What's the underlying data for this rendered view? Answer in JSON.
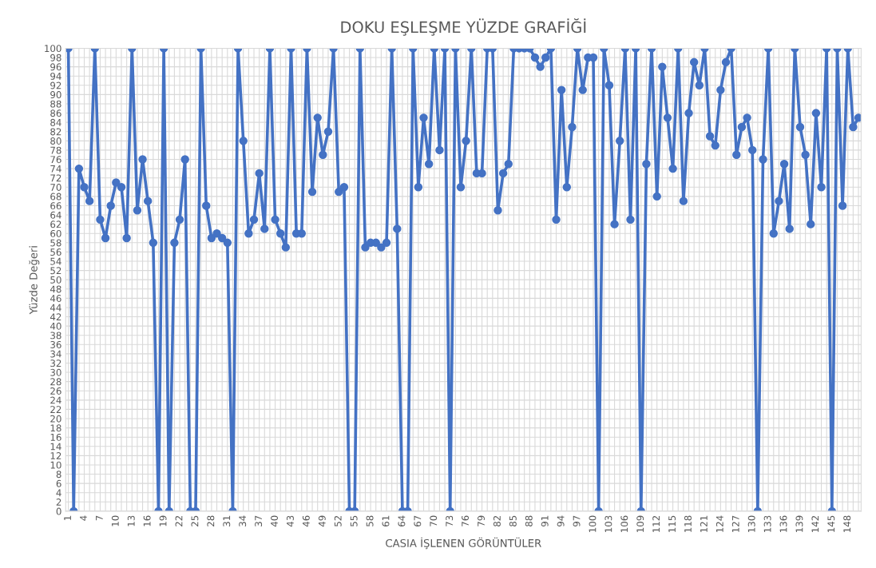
{
  "chart_data": {
    "type": "line",
    "title": "DOKU EŞLEŞME YÜZDE GRAFİĞİ",
    "xlabel": "CASIA İŞLENEN GÖRÜNTÜLER",
    "ylabel": "Yüzde Değeri",
    "categories": [
      "1",
      null,
      null,
      "4",
      null,
      null,
      "7",
      null,
      null,
      "10",
      null,
      null,
      "13",
      null,
      null,
      "16",
      null,
      null,
      "19",
      null,
      null,
      "22",
      null,
      null,
      "25",
      null,
      null,
      "28",
      null,
      null,
      "31",
      null,
      null,
      "34",
      null,
      null,
      "37",
      null,
      null,
      "40",
      null,
      null,
      "43",
      null,
      null,
      "46",
      null,
      null,
      "49",
      null,
      null,
      "52",
      null,
      null,
      "55",
      null,
      null,
      "58",
      null,
      null,
      "61",
      null,
      null,
      "64",
      null,
      null,
      "67",
      null,
      null,
      "70",
      null,
      null,
      "73",
      null,
      null,
      "76",
      null,
      null,
      "79",
      null,
      null,
      "82",
      null,
      null,
      "85",
      null,
      null,
      "88",
      null,
      null,
      "91",
      null,
      null,
      "94",
      null,
      null,
      "97",
      null,
      null,
      "100",
      null,
      null,
      "103",
      null,
      null,
      "106",
      null,
      null,
      "109",
      null,
      null,
      "112",
      null,
      null,
      "115",
      null,
      null,
      "118",
      null,
      null,
      "121",
      null,
      null,
      "124",
      null,
      null,
      "127",
      null,
      null,
      "130",
      null,
      null,
      "133",
      null,
      null,
      "136",
      null,
      null,
      "139",
      null,
      null,
      "142",
      null,
      null,
      "145",
      null,
      null,
      "148",
      null,
      null
    ],
    "series": [
      {
        "color": "#4472c4",
        "values": [
          100,
          0,
          74,
          70,
          67,
          100,
          63,
          59,
          66,
          71,
          70,
          59,
          100,
          65,
          76,
          67,
          58,
          0,
          100,
          0,
          58,
          63,
          76,
          0,
          0,
          100,
          66,
          59,
          60,
          59,
          58,
          0,
          100,
          80,
          60,
          63,
          73,
          61,
          100,
          63,
          60,
          57,
          100,
          60,
          60,
          100,
          69,
          85,
          77,
          82,
          100,
          69,
          70,
          0,
          0,
          100,
          57,
          58,
          58,
          57,
          58,
          100,
          61,
          0,
          0,
          100,
          70,
          85,
          75,
          100,
          78,
          100,
          0,
          100,
          70,
          80,
          100,
          73,
          73,
          100,
          100,
          65,
          73,
          75,
          100,
          100,
          100,
          100,
          98,
          96,
          98,
          100,
          63,
          91,
          70,
          83,
          100,
          91,
          98,
          98,
          0,
          100,
          92,
          62,
          80,
          100,
          63,
          100,
          0,
          75,
          100,
          68,
          96,
          85,
          74,
          100,
          67,
          86,
          97,
          92,
          100,
          81,
          79,
          91,
          97,
          100,
          77,
          83,
          85,
          78,
          0,
          76,
          100,
          60,
          67,
          75,
          61,
          100,
          83,
          77,
          62,
          86,
          70,
          100,
          0,
          100,
          66,
          100,
          83,
          85
        ]
      }
    ],
    "ylim": [
      0,
      100
    ],
    "yticks": [
      0,
      2,
      4,
      6,
      8,
      10,
      12,
      14,
      16,
      18,
      20,
      22,
      24,
      26,
      28,
      30,
      32,
      34,
      36,
      38,
      40,
      42,
      44,
      46,
      48,
      50,
      52,
      54,
      56,
      58,
      60,
      62,
      64,
      66,
      68,
      70,
      72,
      74,
      76,
      78,
      80,
      82,
      84,
      86,
      88,
      90,
      92,
      94,
      96,
      98,
      100
    ],
    "grid": true,
    "marker": "circle",
    "line_style": "solid"
  }
}
